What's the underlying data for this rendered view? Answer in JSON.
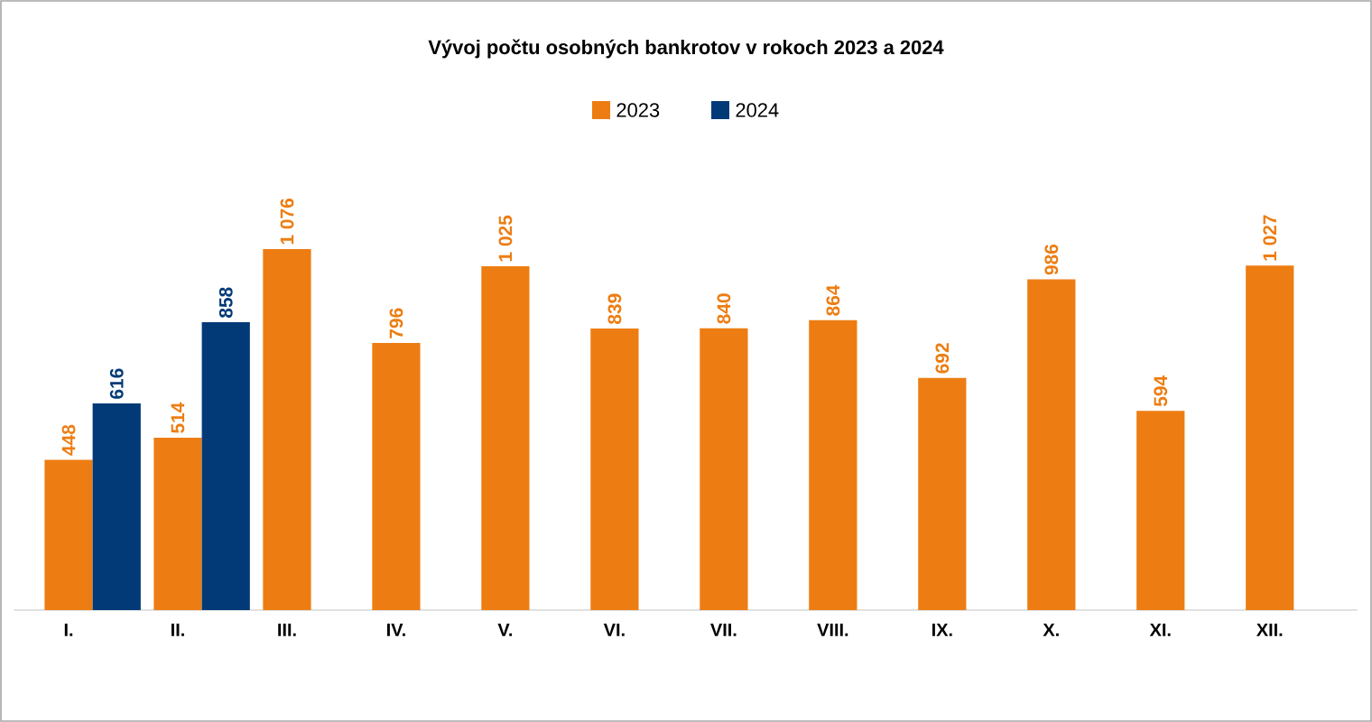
{
  "chart_data": {
    "type": "bar",
    "title": "Vývoj počtu osobných bankrotov v rokoch 2023 a 2024",
    "categories": [
      "I.",
      "II.",
      "III.",
      "IV.",
      "V.",
      "VI.",
      "VII.",
      "VIII.",
      "IX.",
      "X.",
      "XI.",
      "XII."
    ],
    "series": [
      {
        "name": "2023",
        "color": "#ed7d12",
        "values": [
          448,
          514,
          1076,
          796,
          1025,
          839,
          840,
          864,
          692,
          986,
          594,
          1027
        ],
        "value_labels": [
          "448",
          "514",
          "1 076",
          "796",
          "1 025",
          "839",
          "840",
          "864",
          "692",
          "986",
          "594",
          "1 027"
        ]
      },
      {
        "name": "2024",
        "color": "#023a78",
        "values": [
          616,
          858,
          null,
          null,
          null,
          null,
          null,
          null,
          null,
          null,
          null,
          null
        ],
        "value_labels": [
          "616",
          "858",
          null,
          null,
          null,
          null,
          null,
          null,
          null,
          null,
          null,
          null
        ]
      }
    ],
    "tick_labels": "x",
    "legend": "top"
  }
}
